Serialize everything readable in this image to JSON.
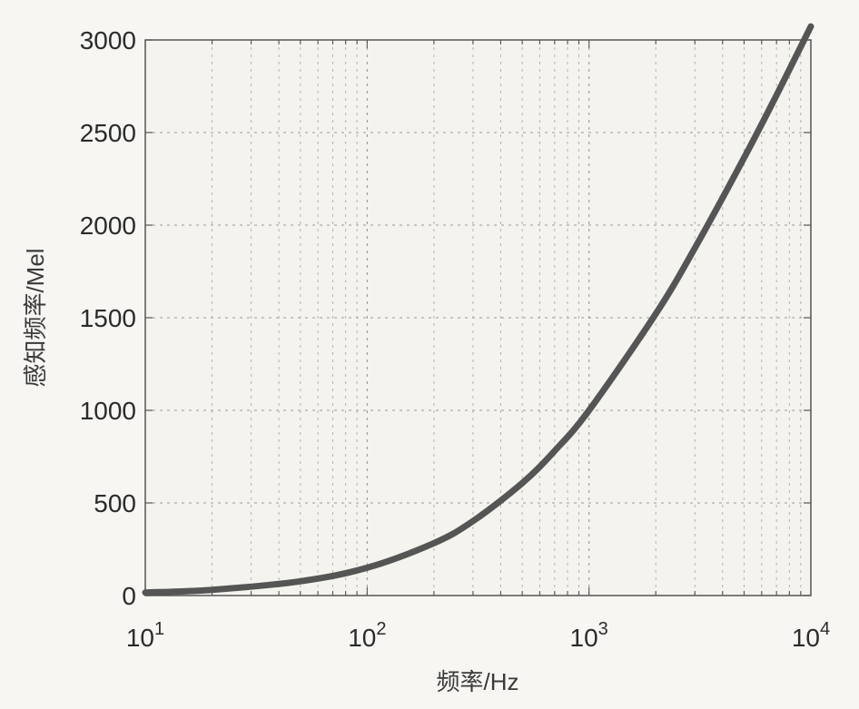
{
  "chart_data": {
    "type": "line",
    "xscale": "log",
    "xlabel": "频率/Hz",
    "ylabel": "感知频率/Mel",
    "xlim": [
      10,
      10000
    ],
    "ylim": [
      0,
      3000
    ],
    "x_ticks": [
      {
        "base": "10",
        "exp": "1"
      },
      {
        "base": "10",
        "exp": "2"
      },
      {
        "base": "10",
        "exp": "3"
      },
      {
        "base": "10",
        "exp": "4"
      }
    ],
    "y_ticks": [
      "0",
      "500",
      "1000",
      "1500",
      "2000",
      "2500",
      "3000"
    ],
    "grid": true,
    "legend": "none",
    "series": [
      {
        "color": "#555555",
        "x": [
          10,
          20,
          50,
          100,
          200,
          300,
          500,
          700,
          1000,
          2000,
          3000,
          5000,
          7000,
          10000
        ],
        "y": [
          16,
          31,
          77,
          150,
          283,
          402,
          607,
          781,
          1000,
          1521,
          1876,
          2363,
          2702,
          3073
        ]
      }
    ]
  }
}
